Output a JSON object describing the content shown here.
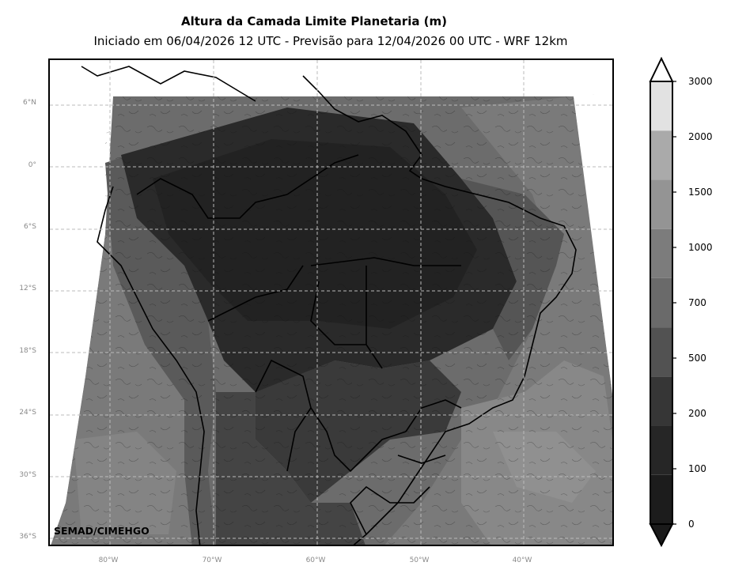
{
  "title": "Altura da Camada Limite Planetaria (m)",
  "subtitle": "Iniciado em 06/04/2026 12 UTC - Previsão para 12/04/2026 00 UTC - WRF 12km",
  "watermark": "SEMAD/CIMEHGO",
  "latitude_labels": [
    "6°N",
    "0°",
    "6°S",
    "12°S",
    "18°S",
    "24°S",
    "30°S",
    "36°S"
  ],
  "longitude_labels": [
    "80°W",
    "70°W",
    "60°W",
    "50°W",
    "40°W"
  ],
  "colorbar": {
    "levels": [
      "3000",
      "2000",
      "1500",
      "1000",
      "700",
      "500",
      "200",
      "100",
      "0"
    ],
    "colors_low_to_high": [
      "#1c1c1c",
      "#262626",
      "#363636",
      "#525252",
      "#6a6a6a",
      "#7c7c7c",
      "#949494",
      "#aaaaaa",
      "#e2e2e2"
    ],
    "extend": "both"
  },
  "map": {
    "projection": "PlateCarree",
    "extent_lon": [
      -86,
      -32
    ],
    "extent_lat": [
      -37,
      10
    ],
    "gridlines": true,
    "background": "#ffffff"
  }
}
